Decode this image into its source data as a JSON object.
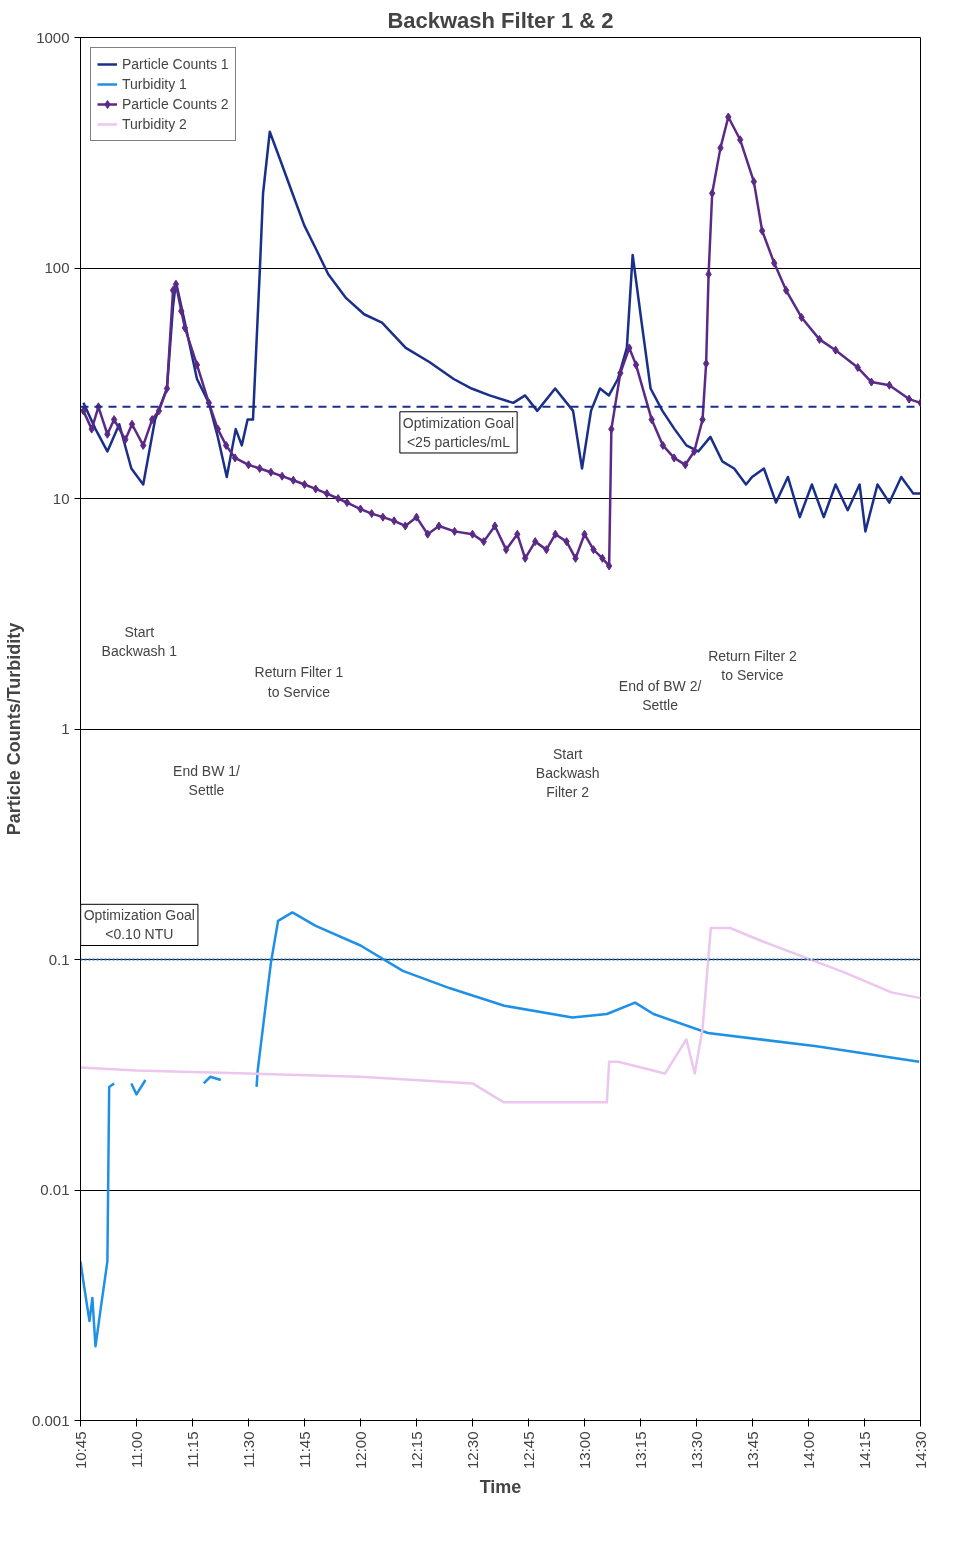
{
  "chart_data": {
    "type": "line",
    "title": "Backwash Filter 1 & 2",
    "xlabel": "Time",
    "ylabel": "Particle Counts/Turbidity",
    "log": "y",
    "grid": "y",
    "legend": "top left",
    "xlim": [
      10.75,
      14.5
    ],
    "ylim": [
      0.001,
      1000
    ],
    "xticks": [
      {
        "value": 10.75,
        "label": "10:45"
      },
      {
        "value": 11.0,
        "label": "11:00"
      },
      {
        "value": 11.25,
        "label": "11:15"
      },
      {
        "value": 11.5,
        "label": "11:30"
      },
      {
        "value": 11.75,
        "label": "11:45"
      },
      {
        "value": 12.0,
        "label": "12:00"
      },
      {
        "value": 12.25,
        "label": "12:15"
      },
      {
        "value": 12.5,
        "label": "12:30"
      },
      {
        "value": 12.75,
        "label": "12:45"
      },
      {
        "value": 13.0,
        "label": "13:00"
      },
      {
        "value": 13.25,
        "label": "13:15"
      },
      {
        "value": 13.5,
        "label": "13:30"
      },
      {
        "value": 13.75,
        "label": "13:45"
      },
      {
        "value": 14.0,
        "label": "14:00"
      },
      {
        "value": 14.25,
        "label": "14:15"
      },
      {
        "value": 14.5,
        "label": "14:30"
      }
    ],
    "yticks": [
      0.001,
      0.01,
      0.1,
      1,
      10,
      100,
      1000
    ],
    "series": [
      {
        "name": "Particle Counts 1",
        "color": "#1a2f8a",
        "marker": "none",
        "x": [
          10.763,
          10.817,
          10.87,
          10.923,
          10.977,
          11.03,
          11.083,
          11.136,
          11.163,
          11.176,
          11.216,
          11.27,
          11.323,
          11.363,
          11.403,
          11.443,
          11.47,
          11.496,
          11.52,
          11.55,
          11.565,
          11.595,
          11.643,
          11.696,
          11.749,
          11.803,
          11.856,
          11.936,
          12.016,
          12.096,
          12.202,
          12.309,
          12.416,
          12.496,
          12.576,
          12.682,
          12.735,
          12.789,
          12.869,
          12.949,
          12.989,
          13.029,
          13.069,
          13.109,
          13.149,
          13.189,
          13.215,
          13.255,
          13.295,
          13.348,
          13.402,
          13.455,
          13.508,
          13.562,
          13.615,
          13.668,
          13.721,
          13.748,
          13.801,
          13.855,
          13.908,
          13.961,
          14.015,
          14.068,
          14.121,
          14.175,
          14.228,
          14.254,
          14.308,
          14.361,
          14.414,
          14.468,
          14.5
        ],
        "values": [
          26,
          20,
          16,
          21,
          13.5,
          11.5,
          22,
          30,
          68,
          87,
          58,
          33,
          26,
          18.5,
          12.4,
          20,
          17,
          22,
          22,
          95,
          211,
          390,
          292,
          211,
          153,
          120,
          94,
          74,
          63,
          58,
          45,
          39,
          33,
          30,
          28,
          26,
          28,
          24,
          30,
          24,
          13.5,
          24,
          30,
          28,
          33,
          45,
          114,
          58,
          30,
          24,
          20,
          17,
          16,
          18.5,
          14.5,
          13.5,
          11.5,
          12.4,
          13.5,
          9.6,
          12.4,
          8.3,
          11.5,
          8.3,
          11.5,
          8.9,
          11.5,
          7.2,
          11.5,
          9.6,
          12.4,
          10.5,
          10.5
        ]
      },
      {
        "name": "Turbidity 1",
        "color": "#1e90e6",
        "marker": "none",
        "x": [
          10.75,
          10.763,
          10.79,
          10.803,
          10.817,
          10.843,
          10.87,
          10.878,
          10.9,
          10.93,
          10.977,
          11.0,
          11.04,
          11.1,
          11.3,
          11.33,
          11.376,
          11.45,
          11.536,
          11.541,
          11.6,
          11.632,
          11.696,
          11.8,
          12.0,
          12.189,
          12.4,
          12.642,
          12.946,
          13.1,
          13.226,
          13.308,
          13.551,
          14.036,
          14.494
        ],
        "values": [
          0.0049,
          0.004,
          0.0027,
          0.0034,
          0.0021,
          0.0032,
          0.0049,
          0.028,
          0.029,
          null,
          0.029,
          0.026,
          0.03,
          null,
          0.029,
          0.031,
          0.03,
          null,
          0.028,
          0.033,
          0.0967,
          0.147,
          0.16,
          0.14,
          0.115,
          0.0893,
          0.075,
          0.063,
          0.056,
          0.058,
          0.065,
          0.058,
          0.048,
          0.042,
          0.036
        ]
      },
      {
        "name": "Particle Counts 2",
        "color": "#5b2a86",
        "marker": "diamond",
        "x": [
          10.763,
          10.8,
          10.83,
          10.87,
          10.9,
          10.95,
          10.98,
          11.03,
          11.07,
          11.1,
          11.136,
          11.163,
          11.176,
          11.2,
          11.216,
          11.27,
          11.323,
          11.363,
          11.4,
          11.44,
          11.5,
          11.55,
          11.6,
          11.65,
          11.7,
          11.75,
          11.8,
          11.85,
          11.9,
          11.94,
          12.0,
          12.05,
          12.1,
          12.15,
          12.2,
          12.25,
          12.3,
          12.35,
          12.42,
          12.5,
          12.55,
          12.6,
          12.65,
          12.7,
          12.735,
          12.78,
          12.83,
          12.87,
          12.92,
          12.96,
          13.0,
          13.04,
          13.08,
          13.11,
          13.12,
          13.16,
          13.2,
          13.23,
          13.3,
          13.35,
          13.4,
          13.45,
          13.49,
          13.527,
          13.543,
          13.554,
          13.57,
          13.607,
          13.642,
          13.695,
          13.756,
          13.793,
          13.847,
          13.9,
          13.969,
          14.049,
          14.121,
          14.22,
          14.281,
          14.361,
          14.449,
          14.5
        ],
        "values": [
          24,
          20,
          25,
          19,
          22,
          18,
          21,
          17,
          22,
          24,
          30,
          80,
          85,
          65,
          55,
          38,
          26,
          20,
          17,
          15,
          14,
          13.5,
          13,
          12.5,
          12,
          11.5,
          11,
          10.5,
          10,
          9.6,
          9.0,
          8.6,
          8.3,
          8.0,
          7.6,
          8.3,
          7.0,
          7.6,
          7.2,
          7.0,
          6.5,
          7.6,
          6.0,
          7.0,
          5.5,
          6.5,
          6.0,
          7.0,
          6.5,
          5.5,
          7.0,
          6.0,
          5.5,
          5.1,
          20,
          35,
          45,
          38,
          22,
          17,
          15,
          14,
          16,
          22,
          38.5,
          94,
          211,
          332,
          452,
          360,
          237,
          145,
          105,
          80,
          61,
          49,
          44,
          37,
          32,
          31,
          27,
          26
        ]
      },
      {
        "name": "Turbidity 2",
        "color": "#ecc6ee",
        "marker": "none",
        "x": [
          10.75,
          11.0,
          11.5,
          12.0,
          12.5,
          12.64,
          13.1,
          13.11,
          13.15,
          13.359,
          13.455,
          13.492,
          13.527,
          13.564,
          13.65,
          13.793,
          14.16,
          14.37,
          14.5
        ],
        "values": [
          0.034,
          0.033,
          0.032,
          0.031,
          0.029,
          0.024,
          0.024,
          0.036,
          0.036,
          0.032,
          0.045,
          0.032,
          0.05,
          0.137,
          0.137,
          0.12,
          0.088,
          0.072,
          0.068
        ]
      }
    ],
    "ref_lines": [
      {
        "axis": "y",
        "value": 25,
        "label": "Optimization Goal\n<25 particles/mL",
        "color": "#1a2f8a",
        "line_style": "dashed"
      },
      {
        "axis": "y",
        "value": 0.1,
        "label": "Optimization Goal\n<0.10 NTU",
        "color": "#1e6fc0",
        "line_style": "dotted"
      }
    ],
    "annotations": [
      "Start\nBackwash 1",
      "End BW 1/\nSettle",
      "Return Filter 1\nto Service",
      "Start\nBackwash\nFilter 2",
      "End of BW 2/\nSettle",
      "Return Filter 2\nto Service"
    ]
  }
}
